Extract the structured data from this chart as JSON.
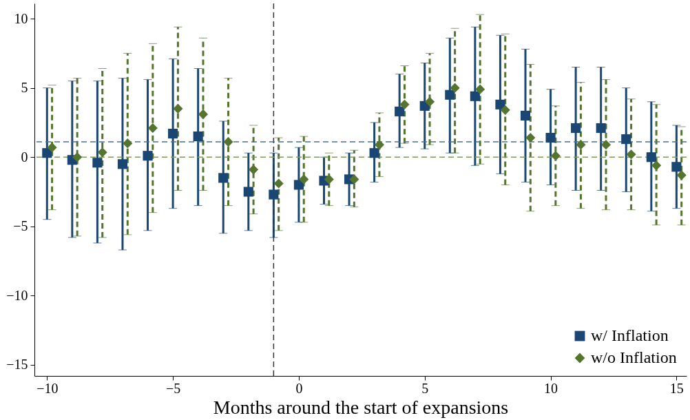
{
  "chart_data": {
    "type": "scatter",
    "xlabel": "Months around the start of expansions",
    "xlim": [
      -10.5,
      15.4
    ],
    "xticks": [
      -10,
      -5,
      0,
      5,
      10,
      15
    ],
    "ylim": [
      -15.8,
      11.1
    ],
    "yticks": [
      -15,
      -10,
      -5,
      0,
      5,
      10
    ],
    "grid": false,
    "legend": "bottom right",
    "ref_lines": [
      {
        "axis": "x",
        "value": -1,
        "color": "#333333",
        "line_style": "dashed"
      },
      {
        "axis": "y",
        "value": 1.1,
        "color": "#4a6f94",
        "line_style": "dashed"
      },
      {
        "axis": "y",
        "value": 0,
        "color": "#7f9a5f",
        "line_style": "dashed"
      }
    ],
    "series": [
      {
        "name": "w/ Inflation",
        "color": "#1a4673",
        "marker": "square",
        "line_style": "solid",
        "x": [
          -10,
          -9,
          -8,
          -7,
          -6,
          -5,
          -4,
          -3,
          -2,
          -1,
          0,
          1,
          2,
          3,
          4,
          5,
          6,
          7,
          8,
          9,
          10,
          11,
          12,
          13,
          14,
          15
        ],
        "values": [
          0.3,
          -0.2,
          -0.4,
          -0.5,
          0.1,
          1.7,
          1.5,
          -1.5,
          -2.5,
          -2.7,
          -2.0,
          -1.7,
          -1.6,
          0.3,
          3.3,
          3.7,
          4.5,
          4.4,
          3.8,
          3.0,
          1.4,
          2.1,
          2.1,
          1.3,
          0.0,
          -0.7
        ],
        "errors": [
          [
            -4.5,
            5.0
          ],
          [
            -5.8,
            5.5
          ],
          [
            -6.2,
            5.5
          ],
          [
            -6.7,
            5.7
          ],
          [
            -5.3,
            5.6
          ],
          [
            -3.7,
            7.1
          ],
          [
            -3.5,
            6.4
          ],
          [
            -5.5,
            2.6
          ],
          [
            -5.3,
            0.3
          ],
          [
            -5.8,
            0.3
          ],
          [
            -4.7,
            0.7
          ],
          [
            -3.4,
            0.0
          ],
          [
            -3.5,
            0.3
          ],
          [
            -1.8,
            2.5
          ],
          [
            0.7,
            6.0
          ],
          [
            0.6,
            6.8
          ],
          [
            0.3,
            8.6
          ],
          [
            -0.6,
            9.4
          ],
          [
            -1.2,
            8.8
          ],
          [
            -1.8,
            7.8
          ],
          [
            -2.0,
            4.9
          ],
          [
            -2.4,
            6.5
          ],
          [
            -2.4,
            6.5
          ],
          [
            -2.5,
            5.0
          ],
          [
            -3.9,
            4.0
          ],
          [
            -3.7,
            2.3
          ]
        ]
      },
      {
        "name": "w/o Inflation",
        "color": "#55752f",
        "marker": "diamond",
        "line_style": "dashed",
        "x": [
          -9.8,
          -8.8,
          -7.8,
          -6.8,
          -5.8,
          -4.8,
          -3.8,
          -2.8,
          -1.8,
          -0.8,
          0.2,
          1.2,
          2.2,
          3.2,
          4.2,
          5.2,
          6.2,
          7.2,
          8.2,
          9.2,
          10.2,
          11.2,
          12.2,
          13.2,
          14.2,
          15.2
        ],
        "values": [
          0.7,
          0.0,
          0.35,
          1.0,
          2.1,
          3.5,
          3.1,
          1.1,
          -0.9,
          -1.9,
          -1.6,
          -1.6,
          -1.6,
          0.9,
          3.8,
          4.0,
          5.0,
          4.9,
          3.4,
          1.4,
          0.1,
          0.9,
          0.9,
          0.2,
          -0.6,
          -1.3
        ],
        "errors": [
          [
            -3.8,
            5.2
          ],
          [
            -5.7,
            5.7
          ],
          [
            -5.8,
            6.4
          ],
          [
            -5.6,
            7.5
          ],
          [
            -4.0,
            8.2
          ],
          [
            -2.4,
            9.4
          ],
          [
            -2.4,
            8.6
          ],
          [
            -3.5,
            5.7
          ],
          [
            -4.1,
            2.3
          ],
          [
            -5.3,
            1.4
          ],
          [
            -4.7,
            1.5
          ],
          [
            -3.5,
            0.3
          ],
          [
            -3.6,
            0.5
          ],
          [
            -1.4,
            3.2
          ],
          [
            1.0,
            6.6
          ],
          [
            0.9,
            7.5
          ],
          [
            0.3,
            9.3
          ],
          [
            -0.5,
            10.3
          ],
          [
            -2.0,
            8.9
          ],
          [
            -3.9,
            6.7
          ],
          [
            -3.5,
            3.7
          ],
          [
            -3.7,
            5.4
          ],
          [
            -3.8,
            5.6
          ],
          [
            -3.8,
            4.2
          ],
          [
            -4.9,
            3.8
          ],
          [
            -4.9,
            2.2
          ]
        ]
      }
    ]
  }
}
